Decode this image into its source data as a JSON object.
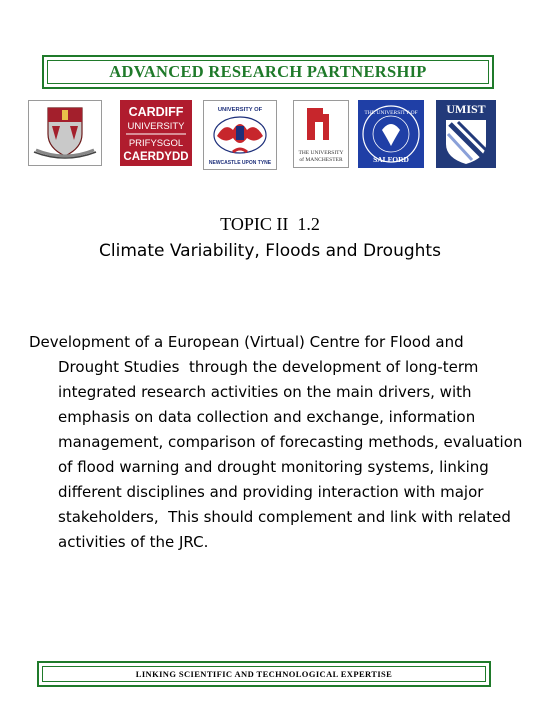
{
  "header": {
    "banner": "ADVANCED RESEARCH PARTNERSHIP"
  },
  "logos": [
    {
      "name": "university-of-bristol",
      "caption": ""
    },
    {
      "name": "cardiff-university",
      "lines": [
        "CARDIFF",
        "UNIVERSITY",
        "PRIFYSGOL",
        "CAERDYDD"
      ]
    },
    {
      "name": "university-of-newcastle",
      "lines": [
        "UNIVERSITY OF",
        "NEWCASTLE UPON TYNE"
      ]
    },
    {
      "name": "university-of-manchester",
      "lines": [
        "THE UNIVERSITY",
        "of MANCHESTER"
      ]
    },
    {
      "name": "university-of-salford",
      "lines": [
        "THE UNIVERSITY OF",
        "SALFORD"
      ]
    },
    {
      "name": "umist",
      "lines": [
        "UMIST"
      ]
    }
  ],
  "topic": {
    "title": "TOPIC II  1.2",
    "subtitle": "Climate Variability, Floods and Droughts"
  },
  "body": {
    "bold_lead_1": "Development of a European (Virtual) Centre for Flood and",
    "bold_lead_2": "Drought Studies",
    "line_2_rest": "  through the development of long-term",
    "lines": [
      "integrated research activities on the main drivers, with",
      "emphasis on data collection and exchange, information",
      "management, comparison of forecasting methods, evaluation",
      "of flood warning and drought monitoring systems, linking",
      "different disciplines and providing interaction with major",
      "stakeholders,  This should complement and link with related",
      "activities of the JRC."
    ]
  },
  "footer": {
    "text": "LINKING SCIENTIFIC AND TECHNOLOGICAL EXPERTISE"
  },
  "colors": {
    "accent_green": "#1f7a2a",
    "cardiff_red": "#b01c2e",
    "salford_blue": "#1f3fa6",
    "umist_navy": "#223a7a"
  }
}
